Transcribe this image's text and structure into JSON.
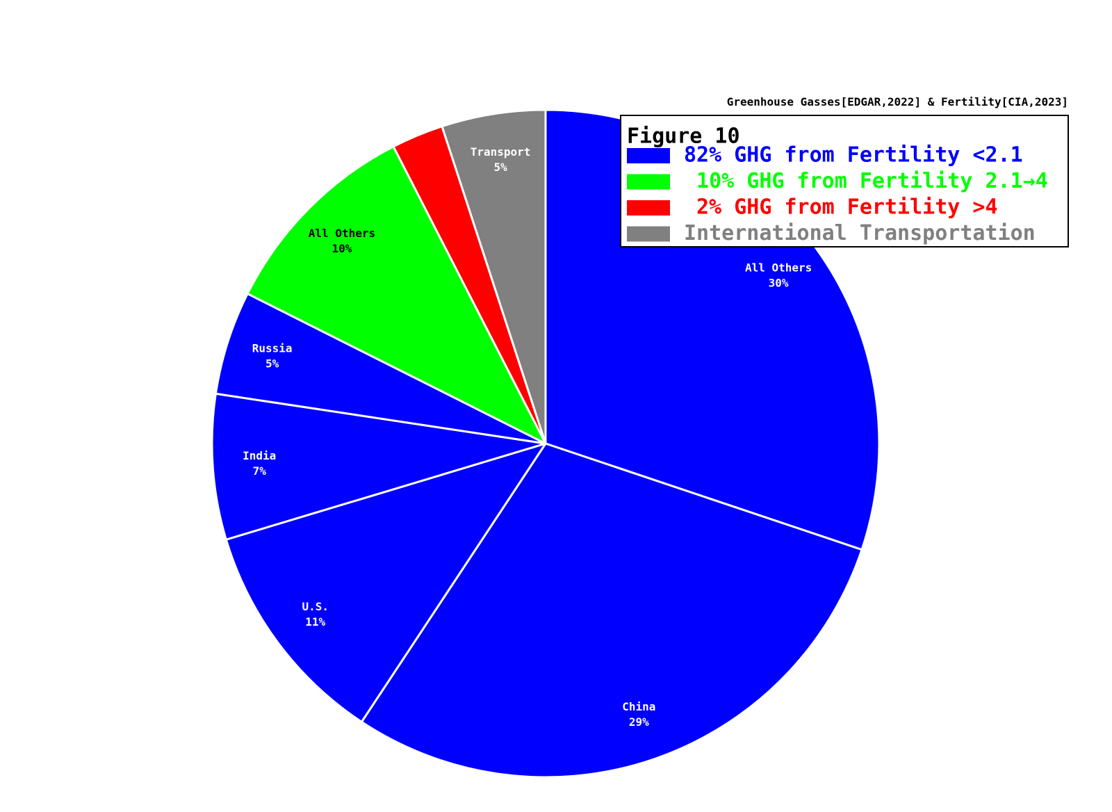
{
  "chart_data": {
    "type": "pie",
    "title": "Greenhouse Gasses[EDGAR,2022] & Fertility[CIA,2023]",
    "categories": [
      "All Others",
      "China",
      "U.S.",
      "India",
      "Russia",
      "All Others",
      null,
      "Transport"
    ],
    "values": [
      30,
      29,
      11,
      7,
      5,
      10,
      2.5,
      5
    ],
    "value_labels": [
      "30%",
      "29%",
      "11%",
      "7%",
      "5%",
      "10%",
      null,
      "5%"
    ],
    "colors": [
      "#0000ff",
      "#0000ff",
      "#0000ff",
      "#0000ff",
      "#0000ff",
      "#00ff00",
      "#ff0000",
      "#808080"
    ],
    "label_colors": [
      "#ffffff",
      "#ffffff",
      "#ffffff",
      "#ffffff",
      "#ffffff",
      "#000000",
      "#ffffff",
      "#ffffff"
    ],
    "start_angle": 90,
    "clockwise": true,
    "legend": {
      "title": "Figure 10",
      "position": "upper right",
      "entries": [
        {
          "label": "82% GHG from Fertility <2.1",
          "color": "#0000ff"
        },
        {
          "label": " 10% GHG from Fertility 2.1→4",
          "color": "#00ff00"
        },
        {
          "label": " 2% GHG from Fertility >4",
          "color": "#ff0000"
        },
        {
          "label": "International Transportation",
          "color": "#808080"
        }
      ]
    }
  }
}
